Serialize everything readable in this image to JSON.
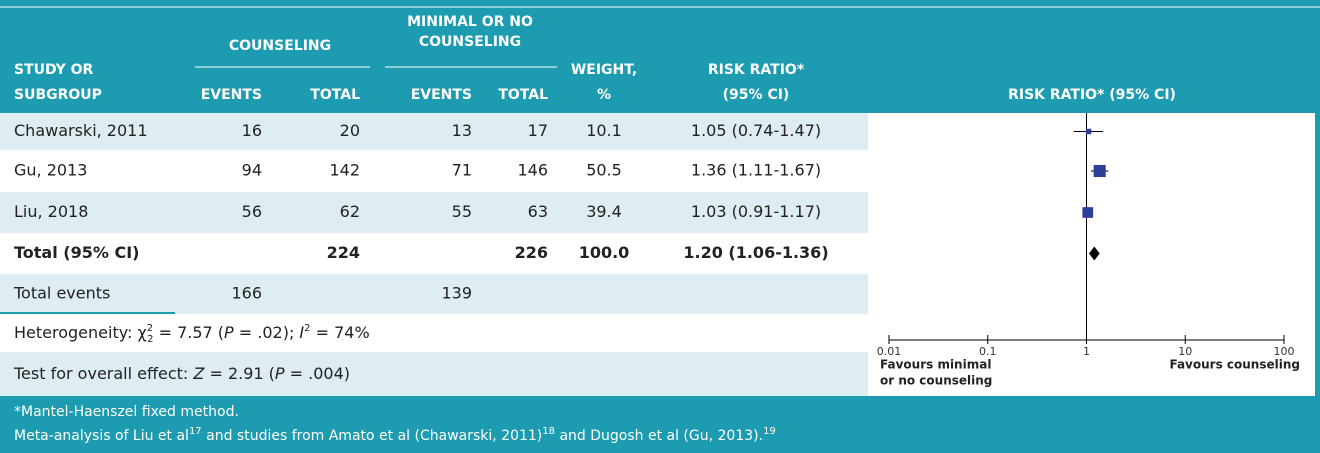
{
  "columns": {
    "study": [
      "STUDY OR",
      "SUBGROUP"
    ],
    "group1": [
      "COUNSELING"
    ],
    "group2": [
      "MINIMAL OR NO",
      "COUNSELING"
    ],
    "events1": "EVENTS",
    "total1": "TOTAL",
    "events2": "EVENTS",
    "total2": "TOTAL",
    "weight": [
      "WEIGHT,",
      "%"
    ],
    "rr": [
      "RISK RATIO*",
      "(95% CI)"
    ],
    "plot": "RISK RATIO* (95% CI)"
  },
  "studies": [
    {
      "name": "Chawarski, 2011",
      "events1": 16,
      "total1": 20,
      "events2": 13,
      "total2": 17,
      "weight": 10.1,
      "rr": {
        "value": 1.05,
        "lo": 0.74,
        "hi": 1.47,
        "label": "1.05 (0.74-1.47)"
      }
    },
    {
      "name": "Gu, 2013",
      "events1": 94,
      "total1": 142,
      "events2": 71,
      "total2": 146,
      "weight": 50.5,
      "rr": {
        "value": 1.36,
        "lo": 1.11,
        "hi": 1.67,
        "label": "1.36 (1.11-1.67)"
      }
    },
    {
      "name": "Liu, 2018",
      "events1": 56,
      "total1": 62,
      "events2": 55,
      "total2": 63,
      "weight": 39.4,
      "rr": {
        "value": 1.03,
        "lo": 0.91,
        "hi": 1.17,
        "label": "1.03 (0.91-1.17)"
      }
    }
  ],
  "total": {
    "name": "Total (95% CI)",
    "total1": 224,
    "total2": 226,
    "weight": {
      "value": 100,
      "label": "100.0"
    },
    "rr": {
      "value": 1.2,
      "lo": 1.06,
      "hi": 1.36,
      "label": "1.20 (1.06-1.36)"
    }
  },
  "events": {
    "name": "Total events",
    "events1": 166,
    "events2": 139
  },
  "heterogeneity": [
    {
      "text": "Heterogeneity: χ"
    },
    {
      "text": "2",
      "style": "sup"
    },
    {
      "text": "2",
      "style": "sub"
    },
    {
      "text": " = 7.57 ("
    },
    {
      "text": "P",
      "style": "italic"
    },
    {
      "text": " = .02); "
    },
    {
      "text": "I",
      "style": "italic"
    },
    {
      "text": "2",
      "style": "sup"
    },
    {
      "text": " = 74%"
    }
  ],
  "overall": [
    {
      "text": "Test for overall effect: "
    },
    {
      "text": "Z",
      "style": "italic"
    },
    {
      "text": " = 2.91 ("
    },
    {
      "text": "P",
      "style": "italic"
    },
    {
      "text": " = .004)"
    }
  ],
  "footnotes": [
    [
      {
        "text": "*Mantel-Haenszel fixed method."
      }
    ],
    [
      {
        "text": "Meta-analysis of Liu et al"
      },
      {
        "text": "17",
        "style": "sup"
      },
      {
        "text": " and studies from Amato et al (Chawarski, 2011)"
      },
      {
        "text": "18",
        "style": "sup"
      },
      {
        "text": " and Dugosh et al (Gu, 2013)."
      },
      {
        "text": "19",
        "style": "sup"
      }
    ]
  ],
  "plot": {
    "log": true,
    "xlim": [
      0.01,
      100
    ],
    "xticks": [
      {
        "value": 0.01,
        "label": "0.01"
      },
      {
        "value": 0.1,
        "label": "0.1"
      },
      1,
      10,
      100
    ],
    "left_label": [
      "Favours minimal",
      "or no counseling"
    ],
    "right_label": "Favours counseling",
    "color": "#2e3f97"
  }
}
